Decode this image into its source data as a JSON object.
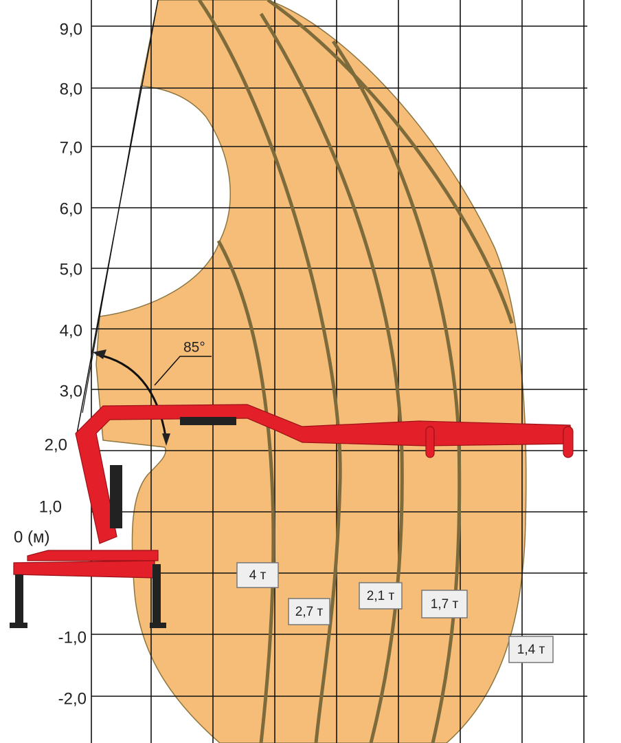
{
  "axis_labels": [
    "9,0",
    "8,0",
    "7,0",
    "6,0",
    "5,0",
    "4,0",
    "3,0",
    "2,0",
    "1,0",
    "0 (м)",
    "-1,0",
    "-2,0"
  ],
  "angle_label": "85°",
  "load_labels": [
    "4 т",
    "2,7 т",
    "2,1 т",
    "1,7 т",
    "1,4 т"
  ]
}
